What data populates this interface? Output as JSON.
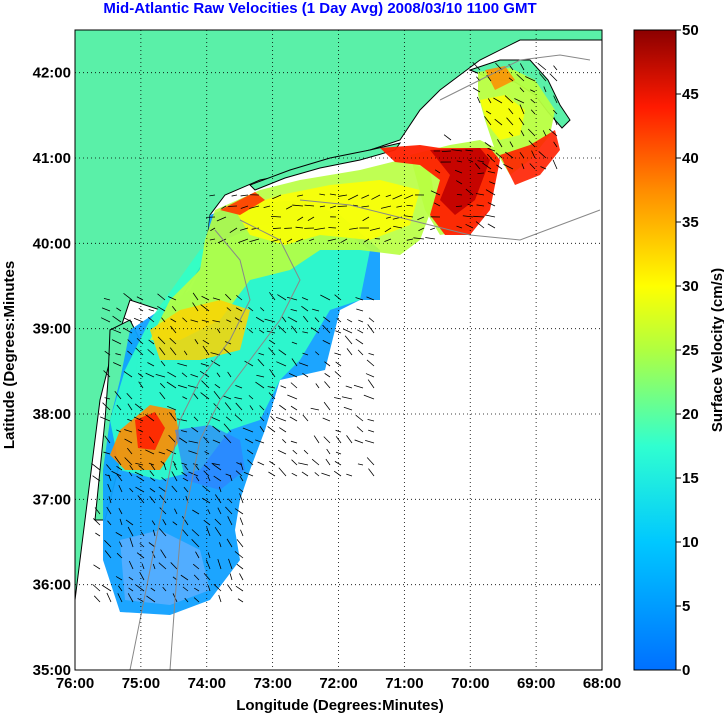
{
  "title": "Mid-Atlantic Raw Velocities (1 Day Avg) 2008/03/10 1100 GMT",
  "xlabel": "Longitude (Degrees:Minutes)",
  "ylabel": "Latitude (Degrees:Minutes",
  "colorbar_label": "Surface Velocity (cm/s)",
  "x_ticks": [
    "76:00",
    "75:00",
    "74:00",
    "73:00",
    "72:00",
    "71:00",
    "70:00",
    "69:00",
    "68:00"
  ],
  "y_ticks": [
    "42:00",
    "41:00",
    "40:00",
    "39:00",
    "38:00",
    "37:00",
    "36:00",
    "35:00"
  ],
  "colorbar_ticks": [
    "50",
    "45",
    "40",
    "35",
    "30",
    "25",
    "20",
    "15",
    "10",
    "5",
    "0"
  ],
  "chart_data": {
    "type": "heatmap",
    "title": "Mid-Atlantic Raw Velocities (1 Day Avg) 2008/03/10 1100 GMT",
    "xlabel": "Longitude (Degrees:Minutes)",
    "ylabel": "Latitude (Degrees:Minutes",
    "xlim": [
      -76,
      -68
    ],
    "ylim": [
      35,
      42.5
    ],
    "colorbar": {
      "label": "Surface Velocity (cm/s)",
      "range": [
        0,
        50
      ],
      "colormap": "jet"
    },
    "grid": true,
    "land_color": "#5af0a8"
  }
}
